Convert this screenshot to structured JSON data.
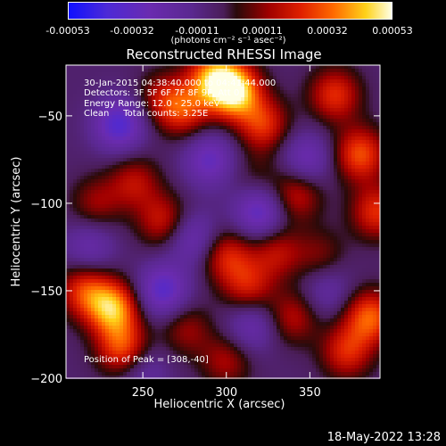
{
  "colorbar": {
    "ticks": [
      "-0.00053",
      "-0.00032",
      "-0.00011",
      "0.00011",
      "0.00032",
      "0.00053"
    ],
    "units": "(photons cm⁻² s⁻¹ asec⁻²)"
  },
  "annotations": {
    "line1": "30-Jan-2015 04:38:40.000 to 04:41:44.000",
    "line2": "Detectors: 3F 5F 6F 7F 8F 9F, Att 0",
    "line3": "Energy Range: 12.0 - 25.0 keV",
    "line4": "Clean     Total counts: 3.25E",
    "peak": "Position of Peak = [308,-40]"
  },
  "footer": {
    "timestamp": "18-May-2022 13:28"
  },
  "chart_data": {
    "type": "heatmap",
    "title": "Reconstructed RHESSI Image",
    "xlabel": "Heliocentric X (arcsec)",
    "ylabel": "Heliocentric Y (arcsec)",
    "xlim": [
      204,
      392
    ],
    "ylim": [
      -200,
      -21
    ],
    "xticks": [
      250,
      300,
      350
    ],
    "yticks": [
      -50,
      -100,
      -150,
      -200
    ],
    "colorbar_range": [
      -0.00053,
      0.00053
    ],
    "peak": {
      "x": 308,
      "y": -40
    },
    "grid": false,
    "sources": [
      {
        "x": 305,
        "y": -36,
        "value": 0.00053
      },
      {
        "x": 292,
        "y": -28,
        "value": 0.0004
      },
      {
        "x": 322,
        "y": -55,
        "value": 0.0003
      },
      {
        "x": 275,
        "y": -47,
        "value": 0.00027
      },
      {
        "x": 262,
        "y": -40,
        "value": 0.0002
      },
      {
        "x": 365,
        "y": -38,
        "value": 0.0003
      },
      {
        "x": 380,
        "y": -72,
        "value": 0.00035
      },
      {
        "x": 390,
        "y": -105,
        "value": 0.0003
      },
      {
        "x": 386,
        "y": -165,
        "value": 0.00037
      },
      {
        "x": 372,
        "y": -185,
        "value": 0.00028
      },
      {
        "x": 245,
        "y": -88,
        "value": 0.00022
      },
      {
        "x": 262,
        "y": -110,
        "value": 0.00025
      },
      {
        "x": 222,
        "y": -100,
        "value": 0.00018
      },
      {
        "x": 215,
        "y": -150,
        "value": 0.0003
      },
      {
        "x": 232,
        "y": -160,
        "value": 0.00046
      },
      {
        "x": 238,
        "y": -183,
        "value": 0.00035
      },
      {
        "x": 300,
        "y": -130,
        "value": 0.00027
      },
      {
        "x": 313,
        "y": -148,
        "value": 0.00025
      },
      {
        "x": 330,
        "y": -128,
        "value": 0.00022
      },
      {
        "x": 342,
        "y": -95,
        "value": 0.00025
      },
      {
        "x": 340,
        "y": -165,
        "value": 0.00022
      },
      {
        "x": 300,
        "y": -190,
        "value": 0.0002
      },
      {
        "x": 276,
        "y": -172,
        "value": 0.00018
      },
      {
        "x": 356,
        "y": -130,
        "value": 0.00015
      },
      {
        "x": 318,
        "y": -85,
        "value": 0.0001
      },
      {
        "x": 236,
        "y": -55,
        "value": -0.00032
      },
      {
        "x": 290,
        "y": -75,
        "value": -0.00025
      },
      {
        "x": 320,
        "y": -105,
        "value": -0.0003
      },
      {
        "x": 262,
        "y": -150,
        "value": -0.0003
      },
      {
        "x": 348,
        "y": -75,
        "value": -0.00022
      },
      {
        "x": 315,
        "y": -170,
        "value": -0.0002
      },
      {
        "x": 218,
        "y": -125,
        "value": -0.00018
      },
      {
        "x": 280,
        "y": -120,
        "value": -0.00022
      },
      {
        "x": 360,
        "y": -150,
        "value": -0.00015
      },
      {
        "x": 250,
        "y": -195,
        "value": -0.00015
      }
    ]
  }
}
